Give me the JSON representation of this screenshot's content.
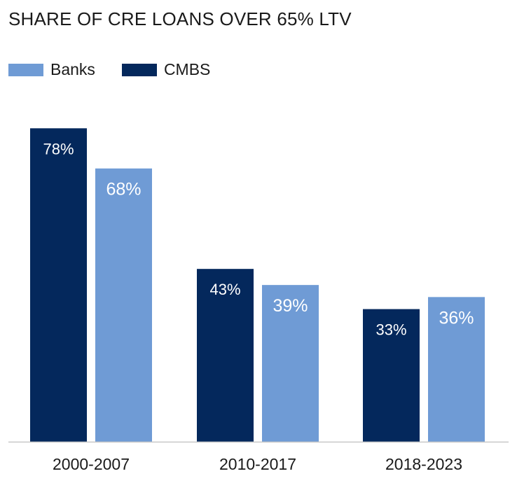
{
  "chart_data": {
    "type": "bar",
    "title": "SHARE OF CRE LOANS OVER 65% LTV",
    "categories": [
      "2000-2007",
      "2010-2017",
      "2018-2023"
    ],
    "value_suffix": "%",
    "ylim": [
      0,
      100
    ],
    "series": [
      {
        "name": "CMBS",
        "color": "#04285c",
        "values": [
          78,
          43,
          33
        ]
      },
      {
        "name": "Banks",
        "color": "#6f9bd5",
        "values": [
          68,
          39,
          36
        ]
      }
    ],
    "legend_order": [
      "Banks",
      "CMBS"
    ],
    "legend_position": "top-left",
    "grid": false
  }
}
